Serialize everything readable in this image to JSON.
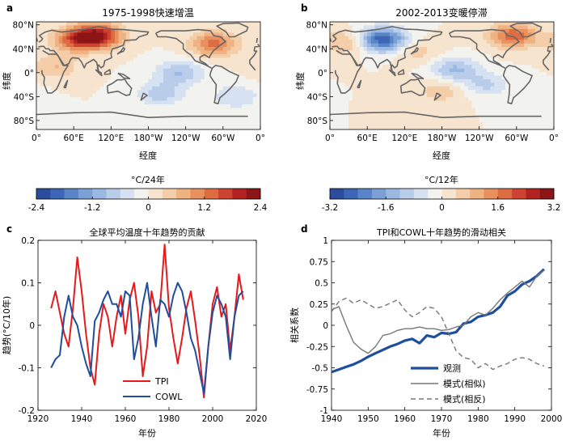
{
  "chart_data": [
    {
      "panel": "a",
      "type": "heatmap",
      "title": "1975-1998快速增温",
      "xlabel": "经度",
      "ylabel": "纬度",
      "xticks": [
        "0°",
        "60°E",
        "120°E",
        "180°W",
        "120°W",
        "60°W",
        "0°"
      ],
      "yticks": [
        "80°N",
        "40°N",
        "0°",
        "40°S",
        "80°S"
      ],
      "colorbar": {
        "unit": "°C/24年",
        "ticks": [
          "-2.4",
          "-1.2",
          "0",
          "1.2",
          "2.4"
        ],
        "range": [
          -2.4,
          2.4
        ]
      },
      "hotspots": [
        {
          "lon": 100,
          "lat": 62,
          "value": 2.0
        },
        {
          "lon": 65,
          "lat": 55,
          "value": 1.4
        },
        {
          "lon": 285,
          "lat": 48,
          "value": 1.3
        },
        {
          "lon": 30,
          "lat": 10,
          "value": 0.6
        },
        {
          "lon": 230,
          "lat": 0,
          "value": -0.9
        },
        {
          "lon": 200,
          "lat": -35,
          "value": -0.8
        },
        {
          "lon": 320,
          "lat": -40,
          "value": -0.6
        }
      ]
    },
    {
      "panel": "b",
      "type": "heatmap",
      "title": "2002-2013变暖停滞",
      "xlabel": "经度",
      "ylabel": "纬度",
      "xticks": [
        "0°",
        "60°E",
        "120°E",
        "180°W",
        "120°W",
        "60°W",
        "0°"
      ],
      "yticks": [
        "80°N",
        "40°N",
        "0°",
        "40°S",
        "80°S"
      ],
      "colorbar": {
        "unit": "°C/12年",
        "ticks": [
          "-3.2",
          "-1.6",
          "0",
          "1.6",
          "3.2"
        ],
        "range": [
          -3.2,
          3.2
        ]
      },
      "hotspots": [
        {
          "lon": 85,
          "lat": 55,
          "value": -2.8
        },
        {
          "lon": 200,
          "lat": 5,
          "value": -1.3
        },
        {
          "lon": 250,
          "lat": -20,
          "value": -0.9
        },
        {
          "lon": 295,
          "lat": 62,
          "value": 1.9
        },
        {
          "lon": 25,
          "lat": 50,
          "value": 0.9
        },
        {
          "lon": 180,
          "lat": -30,
          "value": 0.7
        },
        {
          "lon": 140,
          "lat": 35,
          "value": 0.6
        }
      ]
    },
    {
      "panel": "c",
      "type": "line",
      "title": "全球平均温度十年趋势的贡献",
      "xlabel": "年份",
      "ylabel": "趋势(°C/10年)",
      "xlim": [
        1920,
        2020
      ],
      "ylim": [
        -0.2,
        0.2
      ],
      "xticks": [
        "1920",
        "1940",
        "1960",
        "1980",
        "2000",
        "2020"
      ],
      "yticks": [
        "-0.2",
        "-0.1",
        "0",
        "0.1",
        "0.2"
      ],
      "legend": "bottom-center",
      "x": [
        1926,
        1928,
        1930,
        1932,
        1934,
        1936,
        1938,
        1940,
        1942,
        1944,
        1946,
        1948,
        1950,
        1952,
        1954,
        1956,
        1958,
        1960,
        1962,
        1964,
        1966,
        1968,
        1970,
        1972,
        1974,
        1976,
        1978,
        1980,
        1982,
        1984,
        1986,
        1988,
        1990,
        1992,
        1994,
        1996,
        1998,
        2000,
        2002,
        2004,
        2006,
        2008,
        2010,
        2012,
        2014
      ],
      "series": [
        {
          "name": "TPI",
          "color": "#e41a1c",
          "values": [
            0.04,
            0.08,
            0.03,
            -0.02,
            -0.05,
            0.04,
            0.16,
            0.08,
            -0.02,
            -0.1,
            -0.14,
            -0.02,
            0.05,
            0.02,
            -0.05,
            0.02,
            0.07,
            -0.02,
            0.06,
            0.1,
            0.02,
            -0.12,
            -0.05,
            0.08,
            0.03,
            0.05,
            0.19,
            0.04,
            -0.03,
            -0.09,
            -0.03,
            0.04,
            0.08,
            0.01,
            -0.07,
            -0.17,
            -0.05,
            0.05,
            0.09,
            0.02,
            0.05,
            -0.06,
            0.02,
            0.12,
            0.06
          ]
        },
        {
          "name": "COWL",
          "color": "#1f4e9c",
          "values": [
            -0.1,
            -0.08,
            -0.07,
            0.02,
            0.07,
            0.02,
            0.0,
            -0.05,
            -0.09,
            -0.12,
            0.01,
            0.03,
            0.06,
            0.08,
            0.05,
            0.05,
            0.02,
            0.08,
            0.07,
            -0.08,
            -0.03,
            0.05,
            0.1,
            0.02,
            -0.05,
            0.06,
            0.05,
            0.02,
            0.07,
            0.1,
            0.08,
            0.03,
            -0.03,
            -0.06,
            -0.11,
            -0.16,
            -0.05,
            0.03,
            0.07,
            0.05,
            0.02,
            -0.08,
            0.02,
            0.07,
            0.08
          ]
        }
      ]
    },
    {
      "panel": "d",
      "type": "line",
      "title": "TPI和COWL十年趋势的滑动相关",
      "xlabel": "年份",
      "ylabel": "相关系数",
      "xlim": [
        1940,
        2000
      ],
      "ylim": [
        -1,
        1
      ],
      "xticks": [
        "1940",
        "1950",
        "1960",
        "1970",
        "1980",
        "1990",
        "2000"
      ],
      "yticks": [
        "-1",
        "-0.75",
        "-0.5",
        "-0.25",
        "0",
        "0.25",
        "0.5",
        "0.75",
        "1"
      ],
      "legend": "bottom-center",
      "x": [
        1940,
        1942,
        1944,
        1946,
        1948,
        1950,
        1952,
        1954,
        1956,
        1958,
        1960,
        1962,
        1964,
        1966,
        1968,
        1970,
        1972,
        1974,
        1976,
        1978,
        1980,
        1982,
        1984,
        1986,
        1988,
        1990,
        1992,
        1994,
        1996,
        1998
      ],
      "series": [
        {
          "name": "观测",
          "color": "#1f4e9c",
          "style": "thick",
          "values": [
            -0.55,
            -0.52,
            -0.49,
            -0.46,
            -0.42,
            -0.37,
            -0.33,
            -0.29,
            -0.25,
            -0.22,
            -0.18,
            -0.16,
            -0.21,
            -0.12,
            -0.14,
            -0.09,
            -0.1,
            -0.08,
            0.02,
            0.04,
            0.1,
            0.12,
            0.15,
            0.22,
            0.35,
            0.4,
            0.48,
            0.52,
            0.58,
            0.66
          ]
        },
        {
          "name": "模式(相似)",
          "color": "#777777",
          "style": "solid",
          "values": [
            0.18,
            0.22,
            0.0,
            -0.2,
            -0.28,
            -0.33,
            -0.25,
            -0.12,
            -0.1,
            -0.06,
            -0.04,
            -0.04,
            -0.02,
            -0.04,
            -0.04,
            -0.06,
            -0.05,
            -0.02,
            0.0,
            0.1,
            0.15,
            0.12,
            0.2,
            0.3,
            0.38,
            0.45,
            0.52,
            0.45,
            0.58,
            0.65
          ]
        },
        {
          "name": "模式(相反)",
          "color": "#777777",
          "style": "dashed",
          "values": [
            0.16,
            0.28,
            0.32,
            0.26,
            0.3,
            0.25,
            0.2,
            0.22,
            0.26,
            0.3,
            0.18,
            0.1,
            0.15,
            0.22,
            0.2,
            0.1,
            -0.1,
            -0.3,
            -0.38,
            -0.4,
            -0.5,
            -0.45,
            -0.52,
            -0.48,
            -0.45,
            -0.4,
            -0.38,
            -0.4,
            -0.45,
            -0.48
          ]
        }
      ]
    }
  ],
  "panel_labels": [
    "a",
    "b",
    "c",
    "d"
  ]
}
